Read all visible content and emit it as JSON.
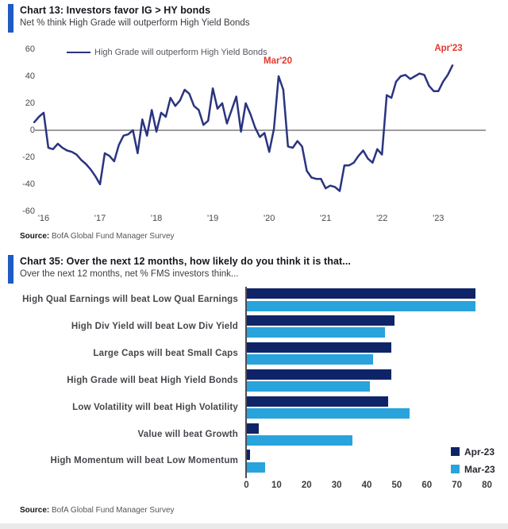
{
  "accent_color": "#1e5bc4",
  "chart_data": [
    {
      "id": "chart13",
      "type": "line",
      "title": "Chart 13: Investors favor IG > HY bonds",
      "subtitle": "Net % think High Grade will outperform High Yield Bonds",
      "legend": [
        "High Grade will outperform High Yield Bonds"
      ],
      "line_color": "#2a3480",
      "zero_line": true,
      "x_start": "2015-11",
      "x_end": "2023-04",
      "x_unit": "month",
      "xticks": [
        "'16",
        "'17",
        "'18",
        "'19",
        "'20",
        "'21",
        "'22",
        "'23"
      ],
      "yticks": [
        60,
        40,
        20,
        0,
        -20,
        -40,
        -60
      ],
      "ylim": [
        -60,
        60
      ],
      "series": [
        {
          "name": "High Grade will outperform High Yield Bonds",
          "values": [
            6,
            10,
            13,
            -13,
            -14,
            -10,
            -13,
            -15,
            -16,
            -18,
            -22,
            -25,
            -29,
            -34,
            -40,
            -17,
            -19,
            -23,
            -11,
            -4,
            -3,
            0,
            -17,
            8,
            -4,
            15,
            -1,
            13,
            10,
            24,
            18,
            22,
            30,
            27,
            18,
            15,
            4,
            7,
            31,
            16,
            20,
            5,
            15,
            25,
            -1,
            20,
            12,
            2,
            -5,
            -2,
            -16,
            1,
            40,
            30,
            -12,
            -13,
            -8,
            -12,
            -30,
            -35,
            -36,
            -36,
            -43,
            -41,
            -42,
            -45,
            -26,
            -26,
            -24,
            -19,
            -15,
            -21,
            -24,
            -14,
            -18,
            26,
            24,
            36,
            40,
            41,
            38,
            40,
            42,
            41,
            33,
            29,
            29,
            36,
            41,
            48
          ]
        }
      ],
      "annotations": [
        {
          "text": "Mar'20",
          "color": "#e4372c",
          "points_to": "2020-03 peak 40"
        },
        {
          "text": "Apr'23",
          "color": "#e4372c",
          "points_to": "2023-04 end 48"
        }
      ],
      "source_label": "Source:",
      "source_text": "BofA Global Fund Manager Survey"
    },
    {
      "id": "chart35",
      "type": "bar",
      "orientation": "horizontal",
      "title": "Chart 35: Over the next 12 months, how likely do you think it is that...",
      "subtitle": "Over the next 12 months, net % FMS investors think...",
      "categories": [
        "High Qual Earnings will beat Low Qual Earnings",
        "High Div Yield will beat Low Div Yield",
        "Large Caps will beat Small Caps",
        "High Grade will beat High Yield Bonds",
        "Low Volatility will beat High Volatility",
        "Value will beat Growth",
        "High Momentum will beat Low Momentum"
      ],
      "series": [
        {
          "name": "Apr-23",
          "color": "#0f2468",
          "values": [
            76,
            49,
            48,
            48,
            47,
            4,
            1
          ]
        },
        {
          "name": "Mar-23",
          "color": "#29a3dc",
          "values": [
            76,
            46,
            42,
            41,
            54,
            35,
            6
          ]
        }
      ],
      "xticks": [
        0,
        10,
        20,
        30,
        40,
        50,
        60,
        70,
        80
      ],
      "xlim": [
        0,
        80
      ],
      "legend_position": "bottom-right",
      "grid": false,
      "source_label": "Source:",
      "source_text": "BofA Global Fund Manager Survey"
    }
  ]
}
